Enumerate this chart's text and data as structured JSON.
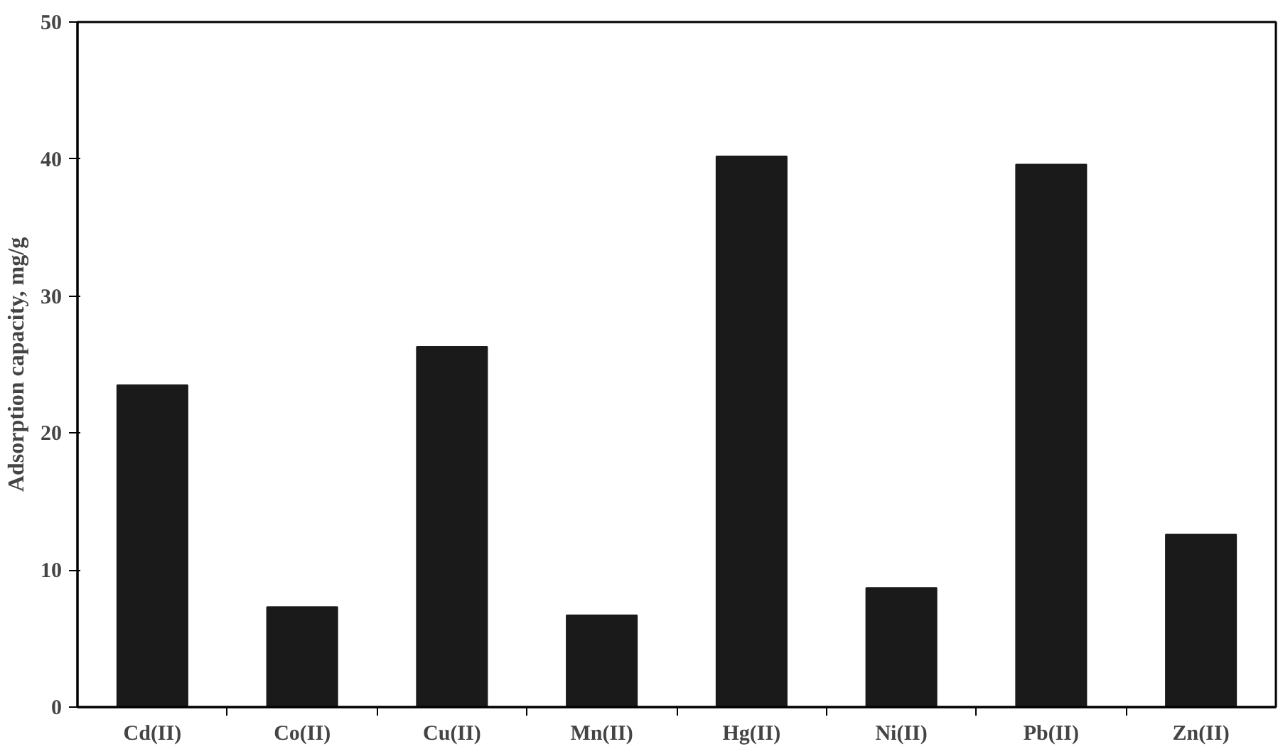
{
  "chart_data": {
    "type": "bar",
    "ylabel": "Adsorption capacity, mg/g",
    "categories": [
      "Cd(II)",
      "Co(II)",
      "Cu(II)",
      "Mn(II)",
      "Hg(II)",
      "Ni(II)",
      "Pb(II)",
      "Zn(II)"
    ],
    "values": [
      23.5,
      7.3,
      26.3,
      6.7,
      40.2,
      8.7,
      39.6,
      12.6
    ],
    "color": "#1a1a1a",
    "ylim": [
      0,
      50
    ],
    "yticks": [
      0,
      10,
      20,
      30,
      40,
      50
    ],
    "grid": false
  }
}
